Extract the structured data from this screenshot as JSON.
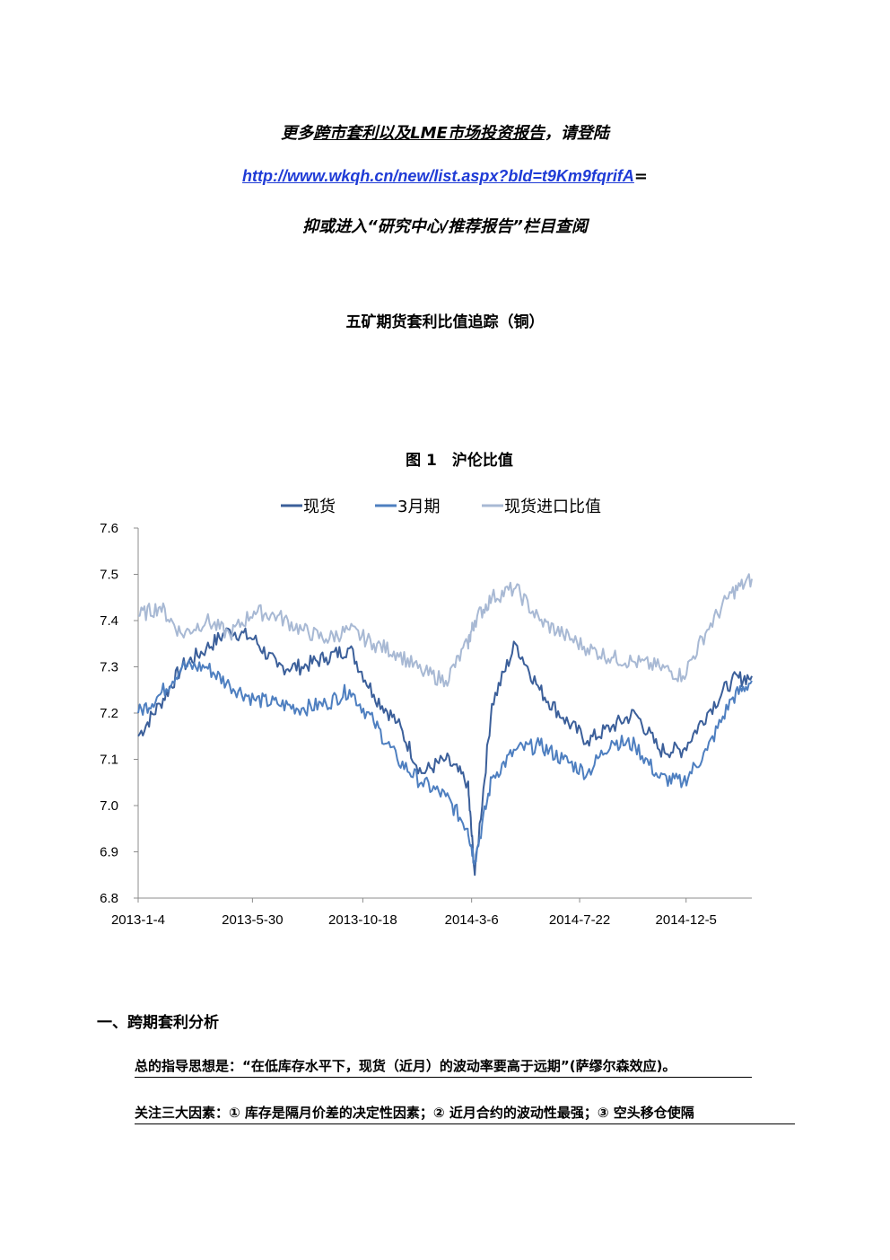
{
  "header": {
    "line1_prefix": "更多",
    "line1_underlined": "跨市套利以及LME市场投资报告",
    "line1_suffix": "，请登陆",
    "link_text": "http://www.wkqh.cn/new/list.aspx?bId=t9Km9fqrifA",
    "link_suffix": "=",
    "line3": "抑或进入“研究中心/推荐报告”栏目查阅"
  },
  "report_title": "五矿期货套利比值追踪（铜）",
  "chart_title": "图 1　沪伦比值",
  "chart_data": {
    "type": "line",
    "title": "图 1　沪伦比值",
    "x_ticks": [
      "2013-1-4",
      "2013-5-30",
      "2013-10-18",
      "2014-3-6",
      "2014-7-22",
      "2014-12-5"
    ],
    "ylim": [
      6.8,
      7.6
    ],
    "y_ticks": [
      "6.8",
      "6.9",
      "7.0",
      "7.1",
      "7.2",
      "7.3",
      "7.4",
      "7.5",
      "7.6"
    ],
    "legend_position": "top",
    "grid": false,
    "colors": {
      "现货": "#3b5f9a",
      "3月期": "#4e7fc0",
      "现货进口比值": "#a8b9d4"
    },
    "series": [
      {
        "name": "现货",
        "x": [
          "2013-01-04",
          "2013-02-01",
          "2013-03-01",
          "2013-04-01",
          "2013-05-01",
          "2013-06-01",
          "2013-07-01",
          "2013-08-01",
          "2013-09-01",
          "2013-10-01",
          "2013-11-01",
          "2013-12-01",
          "2014-01-01",
          "2014-02-01",
          "2014-03-01",
          "2014-03-10",
          "2014-04-01",
          "2014-05-01",
          "2014-06-01",
          "2014-07-01",
          "2014-08-01",
          "2014-09-01",
          "2014-10-01",
          "2014-11-01",
          "2014-12-01",
          "2015-01-01",
          "2015-02-01",
          "2015-02-27"
        ],
        "values": [
          7.15,
          7.22,
          7.3,
          7.34,
          7.38,
          7.36,
          7.3,
          7.3,
          7.32,
          7.34,
          7.24,
          7.18,
          7.07,
          7.1,
          7.05,
          6.85,
          7.22,
          7.35,
          7.25,
          7.19,
          7.14,
          7.17,
          7.2,
          7.12,
          7.12,
          7.2,
          7.27,
          7.28
        ]
      },
      {
        "name": "3月期",
        "x": [
          "2013-01-04",
          "2013-02-01",
          "2013-03-01",
          "2013-04-01",
          "2013-05-01",
          "2013-06-01",
          "2013-07-01",
          "2013-08-01",
          "2013-09-01",
          "2013-10-01",
          "2013-11-01",
          "2013-12-01",
          "2014-01-01",
          "2014-02-01",
          "2014-03-01",
          "2014-03-10",
          "2014-04-01",
          "2014-05-01",
          "2014-06-01",
          "2014-07-01",
          "2014-08-01",
          "2014-09-01",
          "2014-10-01",
          "2014-11-01",
          "2014-12-01",
          "2015-01-01",
          "2015-02-01",
          "2015-02-27"
        ],
        "values": [
          7.2,
          7.24,
          7.3,
          7.3,
          7.26,
          7.23,
          7.22,
          7.21,
          7.22,
          7.25,
          7.18,
          7.1,
          7.05,
          7.02,
          6.95,
          6.88,
          7.06,
          7.12,
          7.13,
          7.1,
          7.07,
          7.14,
          7.13,
          7.06,
          7.05,
          7.12,
          7.23,
          7.27
        ]
      },
      {
        "name": "现货进口比值",
        "x": [
          "2013-01-04",
          "2013-02-01",
          "2013-03-01",
          "2013-04-01",
          "2013-05-01",
          "2013-06-01",
          "2013-07-01",
          "2013-08-01",
          "2013-09-01",
          "2013-10-01",
          "2013-11-01",
          "2013-12-01",
          "2014-01-01",
          "2014-02-01",
          "2014-03-01",
          "2014-03-10",
          "2014-04-01",
          "2014-05-01",
          "2014-06-01",
          "2014-07-01",
          "2014-08-01",
          "2014-09-01",
          "2014-10-01",
          "2014-11-01",
          "2014-12-01",
          "2015-01-01",
          "2015-02-01",
          "2015-02-27"
        ],
        "values": [
          7.41,
          7.43,
          7.37,
          7.4,
          7.37,
          7.42,
          7.41,
          7.38,
          7.36,
          7.38,
          7.35,
          7.33,
          7.29,
          7.27,
          7.35,
          7.4,
          7.45,
          7.47,
          7.4,
          7.37,
          7.34,
          7.32,
          7.31,
          7.3,
          7.28,
          7.38,
          7.46,
          7.49
        ]
      }
    ]
  },
  "section": {
    "heading": "一、跨期套利分析"
  },
  "paragraphs": [
    "总的指导思想是：“在低库存水平下，现货（近月）的波动率要高于远期”(萨缪尔森效应)。",
    "关注三大因素：① 库存是隔月价差的决定性因素；② 近月合约的波动性最强；③ 空头移仓使隔"
  ]
}
